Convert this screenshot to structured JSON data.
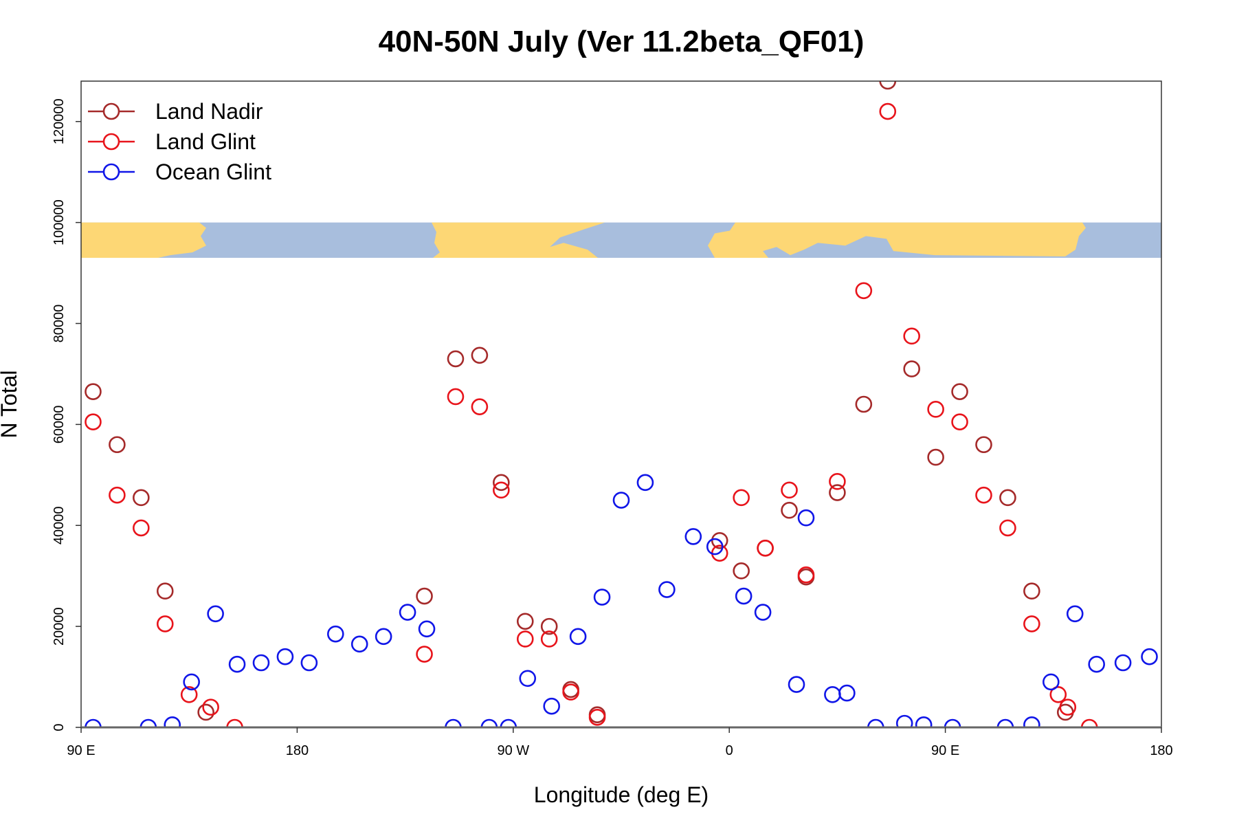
{
  "chart_data": {
    "type": "scatter",
    "title": "40N-50N July (Ver 11.2beta_QF01)",
    "xlabel": "Longitude (deg E)",
    "ylabel": "N Total",
    "xlim": [
      90,
      540
    ],
    "ylim": [
      0,
      128000
    ],
    "x_ticks": [
      {
        "value": 90,
        "label": "90 E"
      },
      {
        "value": 180,
        "label": "180"
      },
      {
        "value": 270,
        "label": "90 W"
      },
      {
        "value": 360,
        "label": "0"
      },
      {
        "value": 450,
        "label": "90 E"
      },
      {
        "value": 540,
        "label": "180"
      }
    ],
    "y_ticks": [
      {
        "value": 0,
        "label": "0"
      },
      {
        "value": 20000,
        "label": "20000"
      },
      {
        "value": 40000,
        "label": "40000"
      },
      {
        "value": 60000,
        "label": "60000"
      },
      {
        "value": 80000,
        "label": "80000"
      },
      {
        "value": 100000,
        "label": "100000"
      },
      {
        "value": 120000,
        "label": "120000"
      }
    ],
    "map_strip": {
      "y_from": 93000,
      "y_to": 100000,
      "land_color": "#FDD775",
      "ocean_color": "#A8BEDD"
    },
    "legend": {
      "position": "top-left"
    },
    "series": [
      {
        "name": "Land Nadir",
        "color": "#A52A2A",
        "points": [
          {
            "x": 95,
            "y": 66500
          },
          {
            "x": 105,
            "y": 56000
          },
          {
            "x": 115,
            "y": 45500
          },
          {
            "x": 125,
            "y": 27000
          },
          {
            "x": 142,
            "y": 3000
          },
          {
            "x": 233,
            "y": 26000
          },
          {
            "x": 246,
            "y": 73000
          },
          {
            "x": 256,
            "y": 73700
          },
          {
            "x": 265,
            "y": 48500
          },
          {
            "x": 275,
            "y": 21000
          },
          {
            "x": 285,
            "y": 20000
          },
          {
            "x": 294,
            "y": 7500
          },
          {
            "x": 305,
            "y": 2500
          },
          {
            "x": 356,
            "y": 37000
          },
          {
            "x": 365,
            "y": 31000
          },
          {
            "x": 375,
            "y": 35500
          },
          {
            "x": 385,
            "y": 43000
          },
          {
            "x": 392,
            "y": 29800
          },
          {
            "x": 405,
            "y": 46500
          },
          {
            "x": 416,
            "y": 64000
          },
          {
            "x": 426,
            "y": 128000
          },
          {
            "x": 436,
            "y": 71000
          },
          {
            "x": 446,
            "y": 53500
          },
          {
            "x": 456,
            "y": 66500
          },
          {
            "x": 466,
            "y": 56000
          },
          {
            "x": 476,
            "y": 45500
          },
          {
            "x": 486,
            "y": 27000
          },
          {
            "x": 500,
            "y": 3000
          }
        ]
      },
      {
        "name": "Land Glint",
        "color": "#E8141B",
        "points": [
          {
            "x": 95,
            "y": 60500
          },
          {
            "x": 105,
            "y": 46000
          },
          {
            "x": 115,
            "y": 39500
          },
          {
            "x": 125,
            "y": 20500
          },
          {
            "x": 135,
            "y": 6500
          },
          {
            "x": 144,
            "y": 4000
          },
          {
            "x": 154,
            "y": 0
          },
          {
            "x": 233,
            "y": 14500
          },
          {
            "x": 246,
            "y": 65500
          },
          {
            "x": 256,
            "y": 63500
          },
          {
            "x": 265,
            "y": 47000
          },
          {
            "x": 275,
            "y": 17500
          },
          {
            "x": 285,
            "y": 17500
          },
          {
            "x": 294,
            "y": 7000
          },
          {
            "x": 305,
            "y": 2000
          },
          {
            "x": 356,
            "y": 34500
          },
          {
            "x": 365,
            "y": 45500
          },
          {
            "x": 375,
            "y": 35500
          },
          {
            "x": 385,
            "y": 47000
          },
          {
            "x": 392,
            "y": 30200
          },
          {
            "x": 405,
            "y": 48700
          },
          {
            "x": 416,
            "y": 86500
          },
          {
            "x": 426,
            "y": 122000
          },
          {
            "x": 436,
            "y": 77500
          },
          {
            "x": 446,
            "y": 63000
          },
          {
            "x": 456,
            "y": 60500
          },
          {
            "x": 466,
            "y": 46000
          },
          {
            "x": 476,
            "y": 39500
          },
          {
            "x": 486,
            "y": 20500
          },
          {
            "x": 497,
            "y": 6500
          },
          {
            "x": 501,
            "y": 4000
          },
          {
            "x": 510,
            "y": 0
          }
        ]
      },
      {
        "name": "Ocean Glint",
        "color": "#1016E8",
        "points": [
          {
            "x": 95,
            "y": 0
          },
          {
            "x": 118,
            "y": 0
          },
          {
            "x": 128,
            "y": 500
          },
          {
            "x": 136,
            "y": 9000
          },
          {
            "x": 146,
            "y": 22500
          },
          {
            "x": 155,
            "y": 12500
          },
          {
            "x": 165,
            "y": 12800
          },
          {
            "x": 175,
            "y": 14000
          },
          {
            "x": 185,
            "y": 12800
          },
          {
            "x": 196,
            "y": 18500
          },
          {
            "x": 206,
            "y": 16500
          },
          {
            "x": 216,
            "y": 18000
          },
          {
            "x": 226,
            "y": 22800
          },
          {
            "x": 234,
            "y": 19500
          },
          {
            "x": 245,
            "y": 0
          },
          {
            "x": 260,
            "y": 0
          },
          {
            "x": 268,
            "y": 0
          },
          {
            "x": 276,
            "y": 9700
          },
          {
            "x": 286,
            "y": 4200
          },
          {
            "x": 297,
            "y": 18000
          },
          {
            "x": 307,
            "y": 25800
          },
          {
            "x": 315,
            "y": 45000
          },
          {
            "x": 325,
            "y": 48500
          },
          {
            "x": 334,
            "y": 27300
          },
          {
            "x": 345,
            "y": 37800
          },
          {
            "x": 354,
            "y": 35800
          },
          {
            "x": 366,
            "y": 26000
          },
          {
            "x": 374,
            "y": 22800
          },
          {
            "x": 388,
            "y": 8500
          },
          {
            "x": 392,
            "y": 41500
          },
          {
            "x": 403,
            "y": 6500
          },
          {
            "x": 409,
            "y": 6800
          },
          {
            "x": 421,
            "y": 0
          },
          {
            "x": 433,
            "y": 800
          },
          {
            "x": 441,
            "y": 500
          },
          {
            "x": 453,
            "y": 0
          },
          {
            "x": 475,
            "y": 0
          },
          {
            "x": 486,
            "y": 500
          },
          {
            "x": 494,
            "y": 9000
          },
          {
            "x": 504,
            "y": 22500
          },
          {
            "x": 513,
            "y": 12500
          },
          {
            "x": 524,
            "y": 12800
          },
          {
            "x": 535,
            "y": 14000
          }
        ]
      }
    ]
  }
}
